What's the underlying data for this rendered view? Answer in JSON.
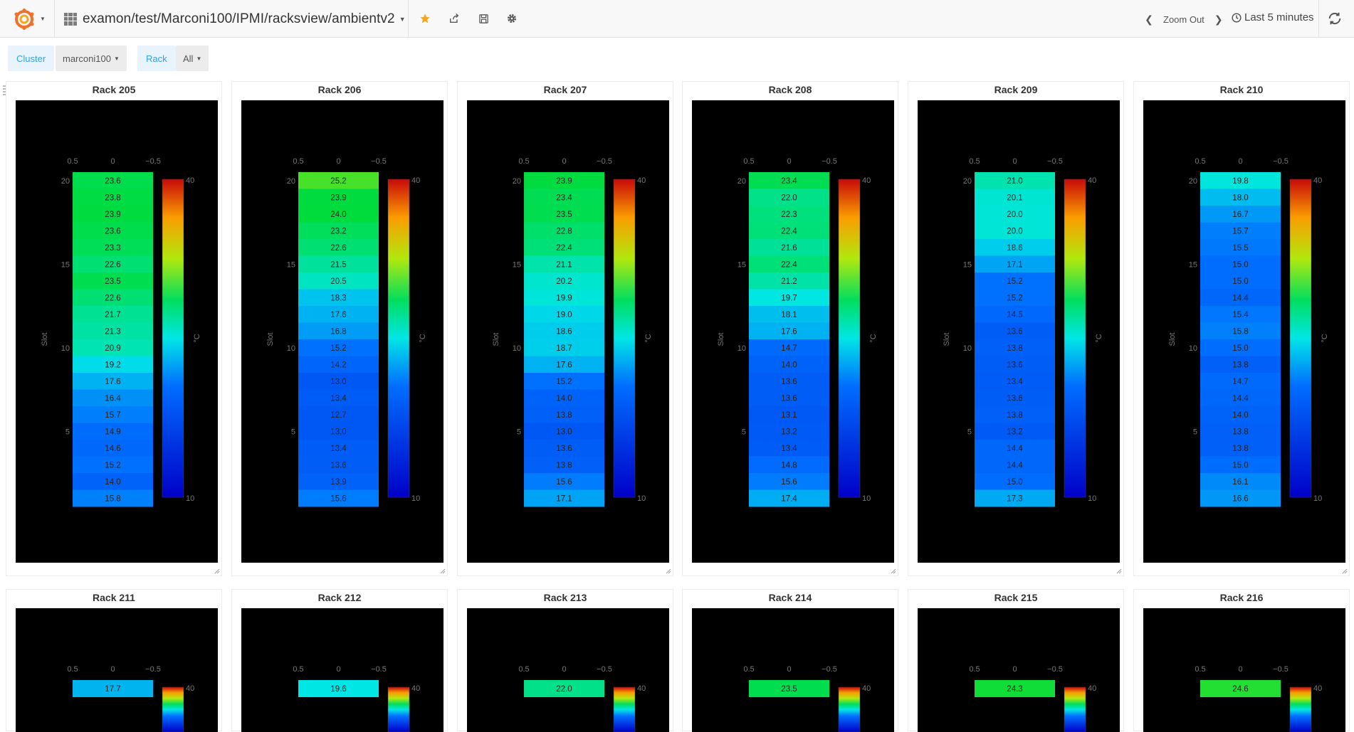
{
  "header": {
    "dashboard_title": "examon/test/Marconi100/IPMI/racksview/ambientv2",
    "zoom_out_label": "Zoom Out",
    "time_range_label": "Last 5 minutes"
  },
  "variables": {
    "cluster_label": "Cluster",
    "cluster_value": "marconi100",
    "rack_label": "Rack",
    "rack_value": "All"
  },
  "colors": {
    "accent": "#33a2e5",
    "star": "#f5a623",
    "panel_bg": "#000000"
  },
  "heatmap_axes": {
    "x_ticks": [
      "0.5",
      "0",
      "−0.5"
    ],
    "y_ticks": [
      "20",
      "15",
      "10",
      "5"
    ],
    "y_label": "Slot",
    "colorbar_label": "°C",
    "colorbar_max": "40",
    "colorbar_min": "10"
  },
  "chart_data": [
    {
      "type": "heatmap",
      "title": "Rack 205",
      "ylabel": "Slot",
      "colorbar_range": [
        10,
        40
      ],
      "slots_top_to_bottom": [
        20,
        19,
        18,
        17,
        16,
        15,
        14,
        13,
        12,
        11,
        10,
        9,
        8,
        7,
        6,
        5,
        4,
        3,
        2,
        1
      ],
      "values": [
        23.6,
        23.8,
        23.9,
        23.6,
        23.3,
        22.6,
        23.5,
        22.6,
        21.7,
        21.3,
        20.9,
        19.2,
        17.6,
        16.4,
        15.7,
        14.9,
        14.6,
        15.2,
        14.0,
        15.8
      ]
    },
    {
      "type": "heatmap",
      "title": "Rack 206",
      "ylabel": "Slot",
      "colorbar_range": [
        10,
        40
      ],
      "slots_top_to_bottom": [
        20,
        19,
        18,
        17,
        16,
        15,
        14,
        13,
        12,
        11,
        10,
        9,
        8,
        7,
        6,
        5,
        4,
        3,
        2,
        1
      ],
      "values": [
        25.2,
        23.9,
        24.0,
        23.2,
        22.6,
        21.5,
        20.5,
        18.3,
        17.6,
        16.8,
        15.2,
        14.2,
        13.0,
        13.4,
        12.7,
        13.0,
        13.4,
        13.6,
        13.9,
        15.6
      ]
    },
    {
      "type": "heatmap",
      "title": "Rack 207",
      "ylabel": "Slot",
      "colorbar_range": [
        10,
        40
      ],
      "slots_top_to_bottom": [
        20,
        19,
        18,
        17,
        16,
        15,
        14,
        13,
        12,
        11,
        10,
        9,
        8,
        7,
        6,
        5,
        4,
        3,
        2,
        1
      ],
      "values": [
        23.9,
        23.4,
        23.5,
        22.8,
        22.4,
        21.1,
        20.2,
        19.9,
        19.0,
        18.6,
        18.7,
        17.6,
        15.2,
        14.0,
        13.8,
        13.0,
        13.6,
        13.8,
        15.6,
        17.1
      ]
    },
    {
      "type": "heatmap",
      "title": "Rack 208",
      "ylabel": "Slot",
      "colorbar_range": [
        10,
        40
      ],
      "slots_top_to_bottom": [
        20,
        19,
        18,
        17,
        16,
        15,
        14,
        13,
        12,
        11,
        10,
        9,
        8,
        7,
        6,
        5,
        4,
        3,
        2,
        1
      ],
      "values": [
        23.4,
        22.0,
        22.3,
        22.4,
        21.6,
        22.4,
        21.2,
        19.7,
        18.1,
        17.6,
        14.7,
        14.0,
        13.6,
        13.6,
        13.1,
        13.2,
        13.4,
        14.8,
        15.6,
        17.4
      ]
    },
    {
      "type": "heatmap",
      "title": "Rack 209",
      "ylabel": "Slot",
      "colorbar_range": [
        10,
        40
      ],
      "slots_top_to_bottom": [
        20,
        19,
        18,
        17,
        16,
        15,
        14,
        13,
        12,
        11,
        10,
        9,
        8,
        7,
        6,
        5,
        4,
        3,
        2,
        1
      ],
      "values": [
        21.0,
        20.1,
        20.0,
        20.0,
        18.6,
        17.1,
        15.2,
        15.2,
        14.5,
        13.6,
        13.8,
        13.6,
        13.4,
        13.6,
        13.8,
        13.2,
        14.4,
        14.4,
        15.0,
        17.3
      ]
    },
    {
      "type": "heatmap",
      "title": "Rack 210",
      "ylabel": "Slot",
      "colorbar_range": [
        10,
        40
      ],
      "slots_top_to_bottom": [
        20,
        19,
        18,
        17,
        16,
        15,
        14,
        13,
        12,
        11,
        10,
        9,
        8,
        7,
        6,
        5,
        4,
        3,
        2,
        1
      ],
      "values": [
        19.8,
        18.0,
        16.7,
        15.7,
        15.5,
        15.0,
        15.0,
        14.4,
        15.4,
        15.8,
        15.0,
        13.8,
        14.7,
        14.4,
        14.0,
        13.8,
        13.8,
        15.0,
        16.1,
        16.6
      ]
    },
    {
      "type": "heatmap",
      "title": "Rack 211",
      "ylabel": "Slot",
      "colorbar_range": [
        10,
        40
      ],
      "values": [
        17.7
      ]
    },
    {
      "type": "heatmap",
      "title": "Rack 212",
      "ylabel": "Slot",
      "colorbar_range": [
        10,
        40
      ],
      "values": [
        19.6
      ]
    },
    {
      "type": "heatmap",
      "title": "Rack 213",
      "ylabel": "Slot",
      "colorbar_range": [
        10,
        40
      ],
      "values": [
        22.0
      ]
    },
    {
      "type": "heatmap",
      "title": "Rack 214",
      "ylabel": "Slot",
      "colorbar_range": [
        10,
        40
      ],
      "values": [
        23.5
      ]
    },
    {
      "type": "heatmap",
      "title": "Rack 215",
      "ylabel": "Slot",
      "colorbar_range": [
        10,
        40
      ],
      "values": [
        24.3
      ]
    },
    {
      "type": "heatmap",
      "title": "Rack 216",
      "ylabel": "Slot",
      "colorbar_range": [
        10,
        40
      ],
      "values": [
        24.6
      ]
    }
  ]
}
